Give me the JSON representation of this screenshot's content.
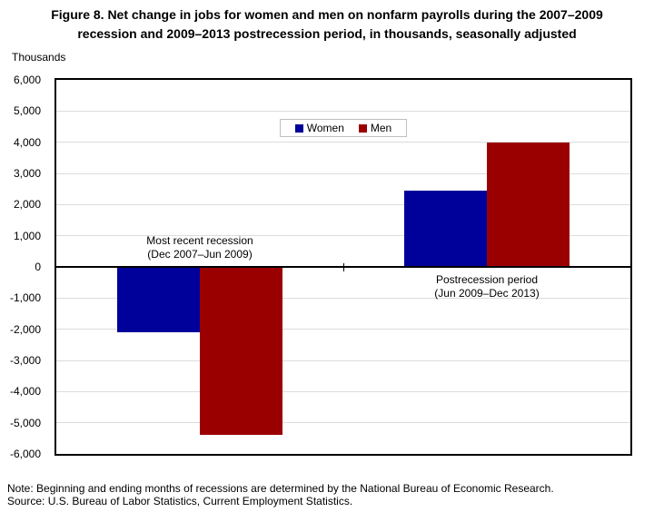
{
  "chart_data": {
    "type": "bar",
    "title_lines": [
      "Figure 8. Net change in jobs for women and men on nonfarm payrolls during the 2007–2009",
      "recession and 2009–2013 postrecession period, in thousands, seasonally adjusted"
    ],
    "y_unit_label": "Thousands",
    "categories": [
      {
        "lines": [
          "Most recent recession",
          "(Dec 2007–Jun 2009)"
        ],
        "label_side": "above-axis"
      },
      {
        "lines": [
          "Postrecession period",
          "(Jun 2009–Dec 2013)"
        ],
        "label_side": "below-axis"
      }
    ],
    "series": [
      {
        "name": "Women",
        "color": "#00009A",
        "values": [
          -2100,
          2450
        ]
      },
      {
        "name": "Men",
        "color": "#9B0000",
        "values": [
          -5400,
          4000
        ]
      }
    ],
    "ylim": [
      -6000,
      6000
    ],
    "ytick_interval": 1000,
    "ytick_labels": [
      "6,000",
      "5,000",
      "4,000",
      "3,000",
      "2,000",
      "1,000",
      "0",
      "-1,000",
      "-2,000",
      "-3,000",
      "-4,000",
      "-5,000",
      "-6,000"
    ],
    "grid": true,
    "legend_position": "inside-top-center",
    "colors": {
      "gridline": "#DCDCDC",
      "axis": "#000000",
      "legend_border": "#BFBFBF"
    }
  },
  "footer": {
    "note": "Note: Beginning and ending months of recessions are determined by the National Bureau of Economic Research.",
    "source": "Source: U.S. Bureau of Labor Statistics, Current Employment Statistics."
  }
}
